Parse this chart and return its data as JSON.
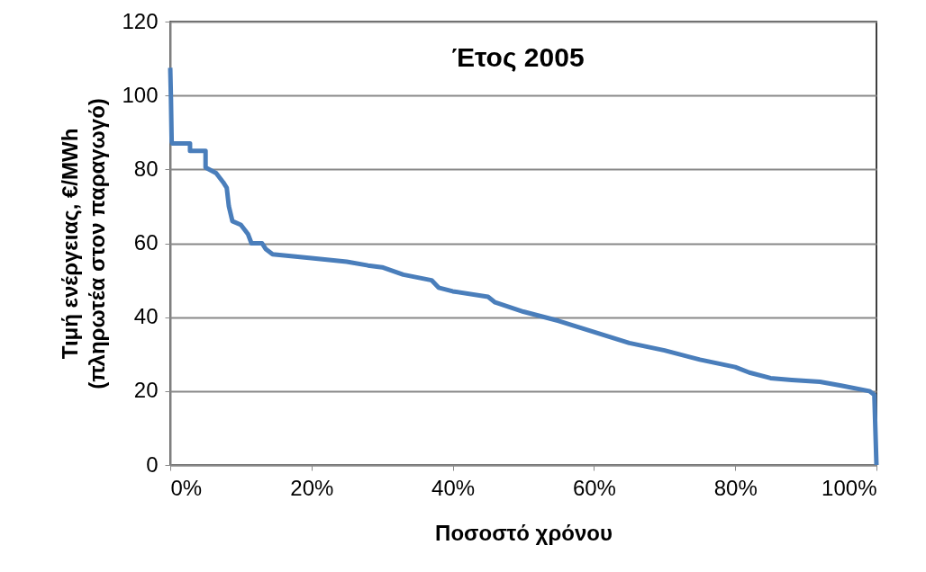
{
  "chart_data": {
    "type": "line",
    "title": "Έτος 2005",
    "xlabel": "Ποσοστό χρόνου",
    "ylabel": "Τιμή ενέργειας, €/MWh\n(πληρωτέα στον παραγωγό)",
    "series": [
      {
        "color": "#4a7ebb",
        "x": [
          0,
          0.1,
          0.2,
          0.3,
          2.8,
          2.8,
          5,
          5,
          6.5,
          7.5,
          8,
          8.3,
          8.8,
          10,
          11,
          11.5,
          13,
          13.5,
          14.5,
          20,
          25,
          28,
          30,
          33,
          37,
          38,
          40,
          45,
          46,
          50,
          55,
          60,
          65,
          70,
          75,
          80,
          82,
          85,
          88,
          92,
          95,
          99,
          99.7,
          100
        ],
        "values": [
          107.5,
          99,
          87.5,
          87,
          87,
          85,
          85,
          80.5,
          79,
          76.5,
          75,
          70,
          66,
          65,
          62.5,
          60,
          60,
          58.5,
          57,
          56,
          55,
          54,
          53.5,
          51.5,
          50,
          48,
          47,
          45.5,
          44,
          41.5,
          39,
          36,
          33,
          31,
          28.5,
          26.5,
          25,
          23.5,
          23,
          22.5,
          21.5,
          20,
          19,
          0
        ]
      }
    ],
    "xlim": [
      0,
      100
    ],
    "xticks": [
      {
        "value": 0,
        "label": "0%"
      },
      {
        "value": 20,
        "label": "20%"
      },
      {
        "value": 40,
        "label": "40%"
      },
      {
        "value": 60,
        "label": "60%"
      },
      {
        "value": 80,
        "label": "80%"
      },
      {
        "value": 100,
        "label": "100%"
      }
    ],
    "ylim": [
      0,
      120
    ],
    "yticks": [
      0,
      20,
      40,
      60,
      80,
      100,
      120
    ],
    "grid": "y",
    "legend": false,
    "line_style": "solid",
    "marker": "none"
  }
}
